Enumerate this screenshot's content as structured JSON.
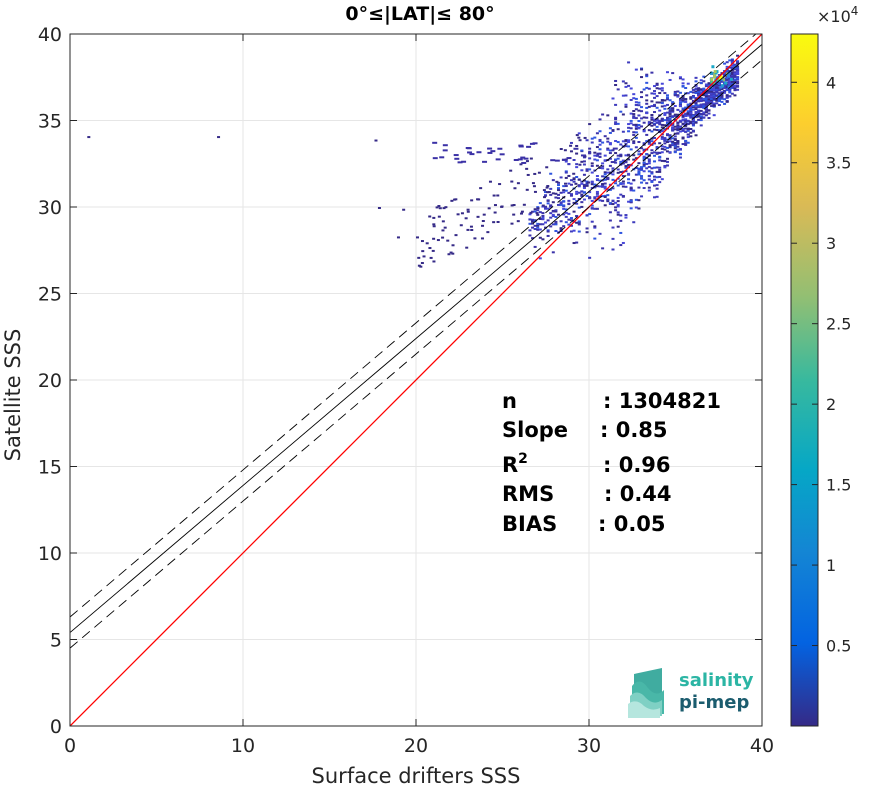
{
  "chart_data": {
    "type": "heatmap",
    "title": "0°≤|LAT|≤ 80°",
    "xlabel": "Surface drifters SSS",
    "ylabel": "Satellite SSS",
    "xlim": [
      0,
      40
    ],
    "ylim": [
      0,
      40
    ],
    "x_ticks": [
      "0",
      "10",
      "20",
      "30",
      "40"
    ],
    "y_ticks": [
      "0",
      "5",
      "10",
      "15",
      "20",
      "25",
      "30",
      "35",
      "40"
    ],
    "grid": true,
    "colorbar": {
      "colormap": "parula",
      "range": [
        0,
        43000
      ],
      "exponent_label": "×10",
      "exponent_power": "4",
      "ticks": [
        "0.5",
        "1",
        "1.5",
        "2",
        "2.5",
        "3",
        "3.5",
        "4"
      ],
      "tick_values": [
        0.5,
        1,
        1.5,
        2,
        2.5,
        3,
        3.5,
        4
      ]
    },
    "lines": [
      {
        "name": "one-to-one",
        "color": "#ff0000",
        "style": "solid",
        "x": [
          0,
          40
        ],
        "y": [
          0,
          40
        ]
      },
      {
        "name": "regression",
        "color": "#000000",
        "style": "solid",
        "x": [
          0,
          40
        ],
        "y": [
          5.4,
          39.4
        ]
      },
      {
        "name": "upper-bound",
        "color": "#000000",
        "style": "dashed",
        "x": [
          0,
          40
        ],
        "y": [
          6.3,
          40.3
        ]
      },
      {
        "name": "lower-bound",
        "color": "#000000",
        "style": "dashed",
        "x": [
          0,
          40
        ],
        "y": [
          4.5,
          38.5
        ]
      }
    ],
    "density_cloud": {
      "main_band": {
        "x_start": 26.5,
        "x_end": 38.5,
        "y_center_at_start": 28.5,
        "y_center_at_end": 37.7
      },
      "hotspot": {
        "x": 37.5,
        "y": 37.6
      },
      "outliers": [
        [
          1.0,
          34.1
        ],
        [
          8.5,
          34.1
        ],
        [
          17.6,
          33.9
        ],
        [
          17.8,
          30.0
        ],
        [
          19.2,
          29.9
        ],
        [
          18.9,
          28.3
        ],
        [
          20.0,
          28.3
        ]
      ]
    },
    "stats": [
      {
        "label": "n",
        "value": ": 1304821"
      },
      {
        "label": "Slope",
        "value": ": 0.85"
      },
      {
        "label": "R",
        "superscript": "2",
        "value": ": 0.96"
      },
      {
        "label": "RMS",
        "value": ": 0.44"
      },
      {
        "label": "BIAS",
        "value": ": 0.05"
      }
    ]
  },
  "logo": {
    "line1": "salinity",
    "line2": "pi-mep"
  }
}
